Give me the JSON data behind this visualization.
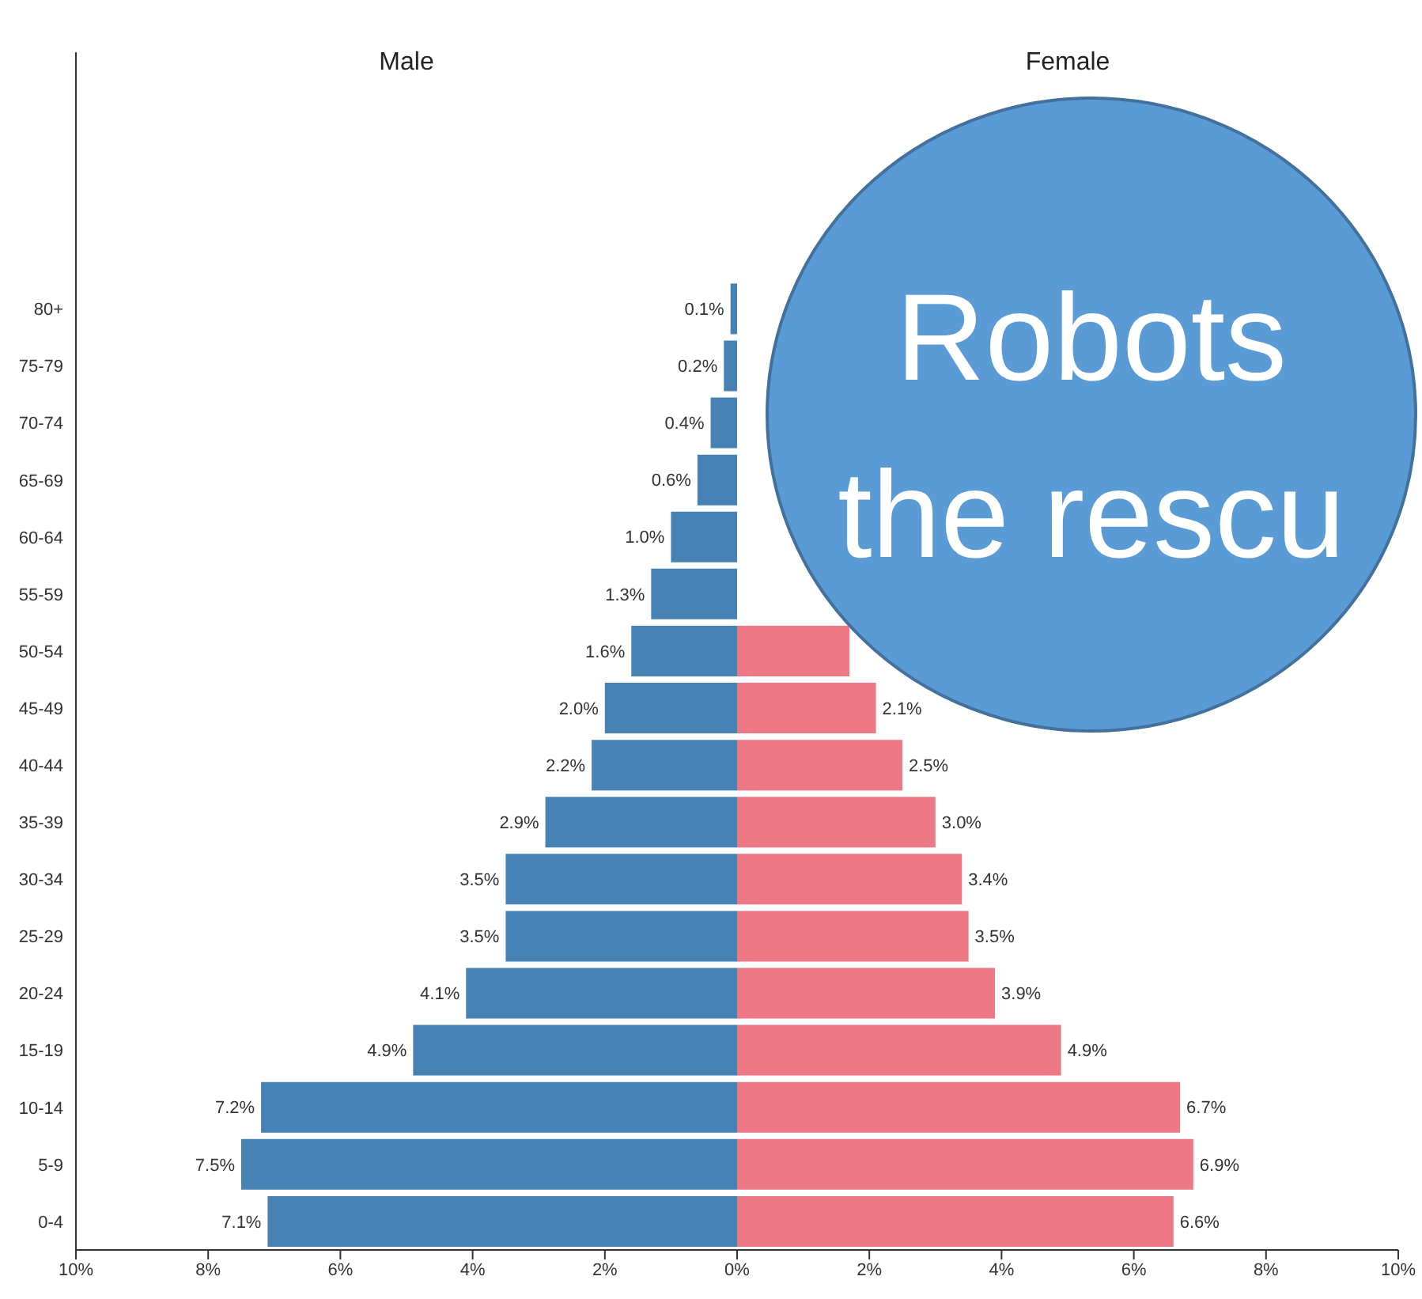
{
  "chart_data": [
    {
      "type": "bar",
      "orientation": "horizontal",
      "title": "Male",
      "categories": [
        null,
        null,
        null,
        null,
        "80+",
        "75-79",
        "70-74",
        "65-69",
        "60-64",
        "55-59",
        "50-54",
        "45-49",
        "40-44",
        "35-39",
        "30-34",
        "25-29",
        "20-24",
        "15-19",
        "10-14",
        "5-9",
        "0-4"
      ],
      "values": [
        null,
        null,
        null,
        null,
        0.1,
        0.2,
        0.4,
        0.6,
        1.0,
        1.3,
        1.6,
        2.0,
        2.2,
        2.9,
        3.5,
        3.5,
        4.1,
        4.9,
        7.2,
        7.5,
        7.1
      ],
      "value_labels": [
        null,
        null,
        null,
        null,
        "0.1%",
        "0.2%",
        "0.4%",
        "0.6%",
        "1.0%",
        "1.3%",
        "1.6%",
        "2.0%",
        "2.2%",
        "2.9%",
        "3.5%",
        "3.5%",
        "4.1%",
        "4.9%",
        "7.2%",
        "7.5%",
        "7.1%"
      ],
      "color": "#4682b4",
      "xlim": [
        10,
        0
      ],
      "xticks": [
        {
          "value": 10,
          "label": "10%"
        },
        {
          "value": 8,
          "label": "8%"
        },
        {
          "value": 6,
          "label": "6%"
        },
        {
          "value": 4,
          "label": "4%"
        },
        {
          "value": 2,
          "label": "2%"
        },
        {
          "value": 0,
          "label": "0%"
        }
      ]
    },
    {
      "type": "bar",
      "orientation": "horizontal",
      "title": "Female",
      "categories": [
        null,
        null,
        null,
        null,
        null,
        null,
        null,
        null,
        null,
        null,
        null,
        null,
        null,
        null,
        null,
        null,
        null,
        null,
        null,
        null,
        null
      ],
      "values": [
        null,
        null,
        null,
        null,
        null,
        null,
        null,
        null,
        null,
        null,
        1.7,
        2.1,
        2.5,
        3.0,
        3.4,
        3.5,
        3.9,
        4.9,
        6.7,
        6.9,
        6.6
      ],
      "value_labels": [
        null,
        null,
        null,
        null,
        null,
        null,
        null,
        null,
        null,
        null,
        null,
        "2.1%",
        "2.5%",
        "3.0%",
        "3.4%",
        "3.5%",
        "3.9%",
        "4.9%",
        "6.7%",
        "6.9%",
        "6.6%"
      ],
      "color": "#ee7986",
      "xlim": [
        0,
        10
      ],
      "xticks": [
        {
          "value": 0,
          "label": null
        },
        {
          "value": 2,
          "label": "2%"
        },
        {
          "value": 4,
          "label": "4%"
        },
        {
          "value": 6,
          "label": "6%"
        },
        {
          "value": 8,
          "label": "8%"
        },
        {
          "value": 10,
          "label": "10%"
        }
      ],
      "tick_labels": "x",
      "annotations": [
        "Robots",
        "the rescu"
      ]
    }
  ]
}
